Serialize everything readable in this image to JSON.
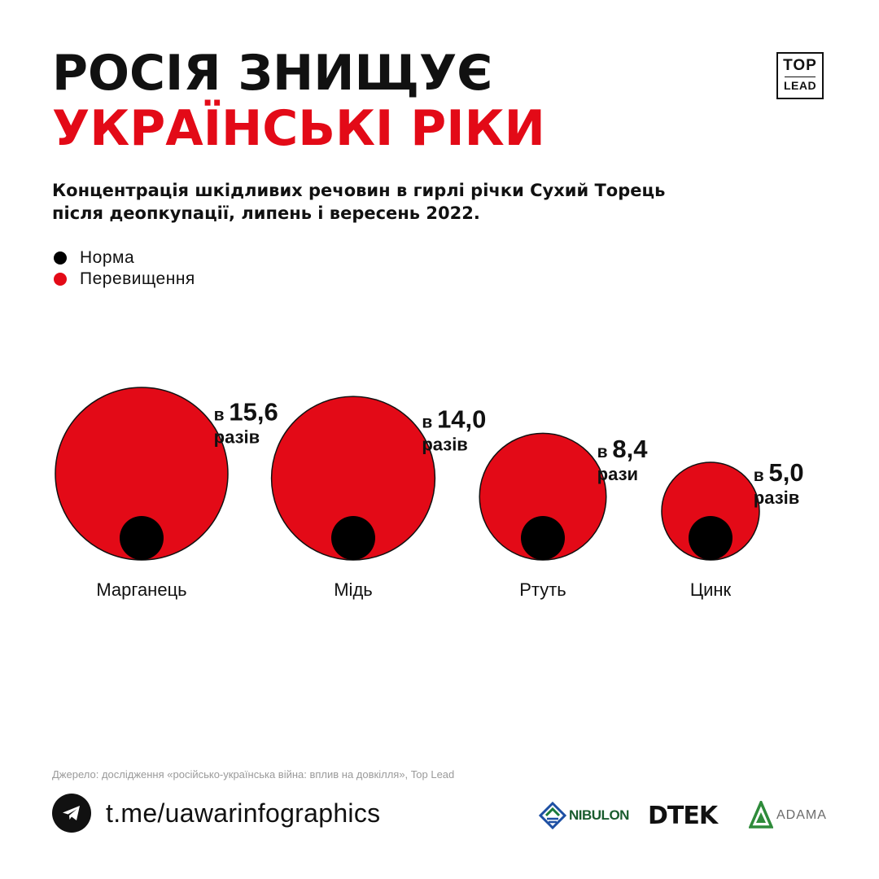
{
  "header": {
    "title_line1": "РОСІЯ ЗНИЩУЄ",
    "title_line2": "УКРАЇНСЬКІ РІКИ",
    "logo_top": "TOP",
    "logo_bottom": "LEAD"
  },
  "subtitle_line1": "Концентрація шкідливих речовин в гирлі річки Сухий Торець",
  "subtitle_line2": "після деопкупації, липень і вересень 2022.",
  "legend": [
    {
      "label": "Норма",
      "color": "#000000"
    },
    {
      "label": "Перевищення",
      "color": "#e30a17"
    }
  ],
  "chart_data": {
    "type": "bubble",
    "categories": [
      "Марганець",
      "Мідь",
      "Ртуть",
      "Цинк"
    ],
    "values": [
      15.6,
      14.0,
      8.4,
      5.0
    ],
    "norm_value": 1,
    "value_labels": [
      "15,6",
      "14,0",
      "8,4",
      "5,0"
    ],
    "label_prefix": "в",
    "label_suffixes": [
      "разів",
      "разів",
      "рази",
      "разів"
    ],
    "series": [
      {
        "name": "Норма",
        "color": "#000000"
      },
      {
        "name": "Перевищення",
        "color": "#e30a17"
      }
    ]
  },
  "source": "Джерело: дослідження «російсько-українська війна: вплив на довкілля», Top Lead",
  "footer": {
    "link": "t.me/uawarinfographics",
    "icon": "telegram-icon"
  },
  "partners": [
    "NIBULON",
    "DTEK",
    "ADAMA"
  ],
  "colors": {
    "accent": "#e30a17",
    "text": "#111111",
    "norm": "#000000"
  }
}
